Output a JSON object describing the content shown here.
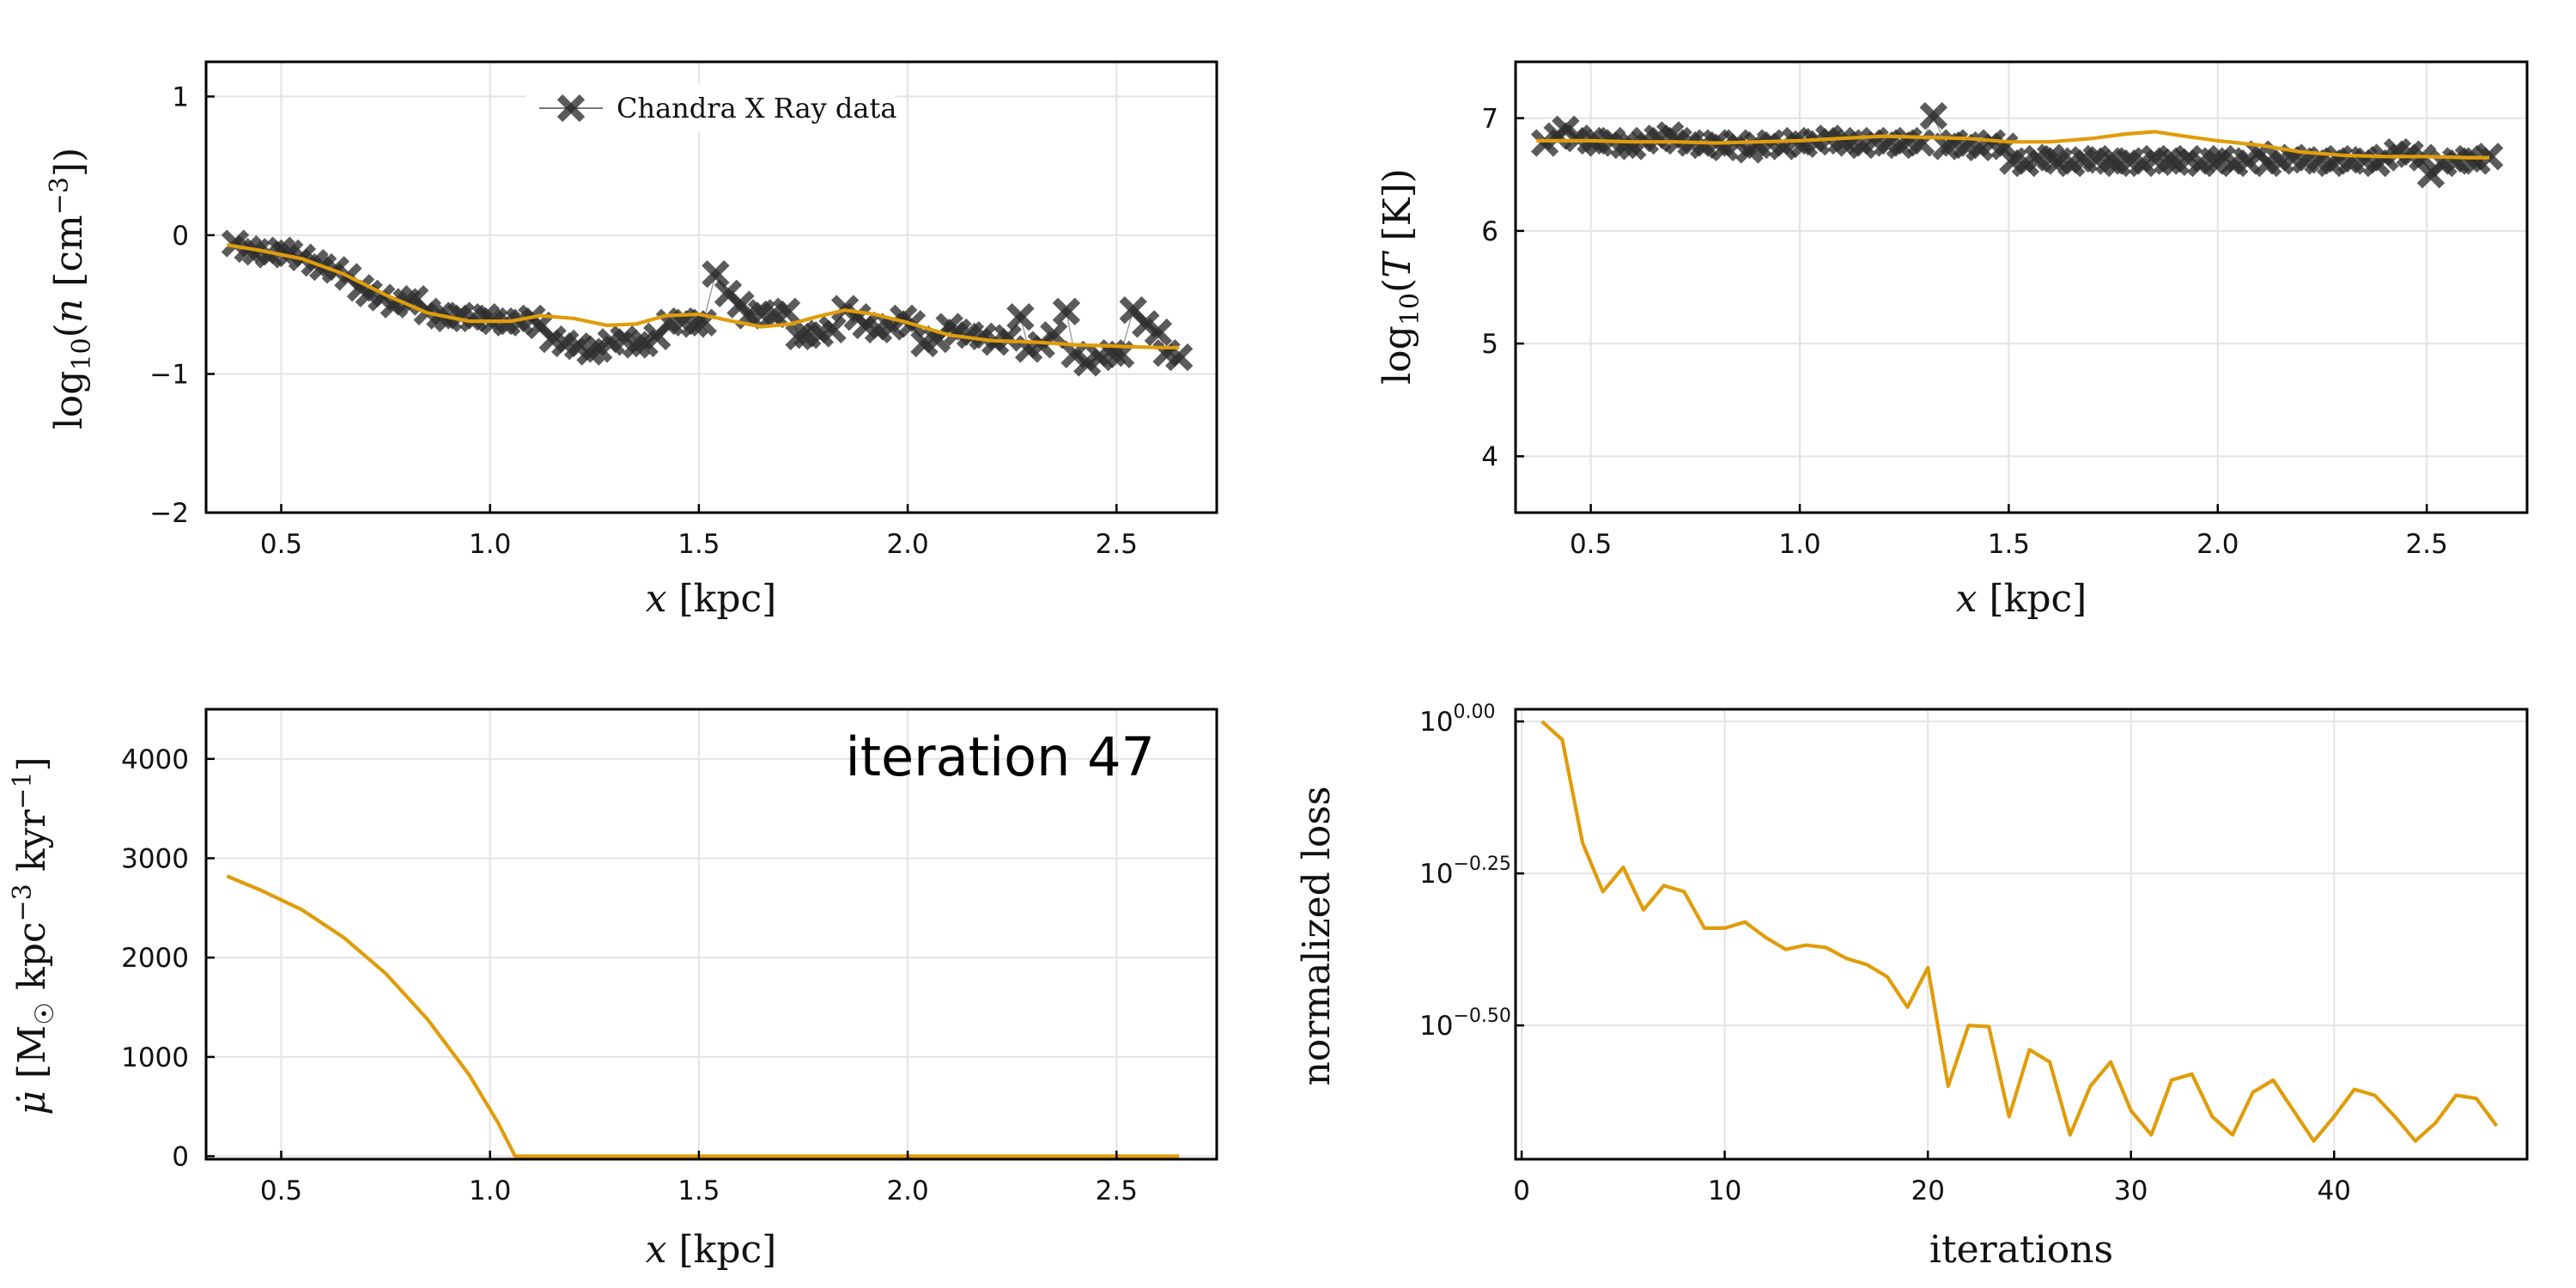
{
  "figure": {
    "annotation": "iteration 47"
  },
  "chart_data": [
    {
      "id": "density",
      "type": "line",
      "xlabel": "x [kpc]",
      "ylabel": "log10(n [cm^-3])",
      "xlim": [
        0.32,
        2.74
      ],
      "ylim": [
        -2,
        1.25
      ],
      "xticks": [
        0.5,
        1.0,
        1.5,
        2.0,
        2.5
      ],
      "xtick_labels": [
        "0.5",
        "1.0",
        "1.5",
        "2.0",
        "2.5"
      ],
      "yticks": [
        1,
        0,
        -1,
        -2
      ],
      "ytick_labels": [
        "1",
        "0",
        "−1",
        "−2"
      ],
      "grid": true,
      "legend": {
        "position": "top",
        "entries": [
          "Chandra X Ray data"
        ]
      },
      "series": [
        {
          "name": "Chandra X Ray data",
          "kind": "markers",
          "x": [
            0.39,
            0.42,
            0.44,
            0.47,
            0.5,
            0.52,
            0.55,
            0.58,
            0.6,
            0.63,
            0.66,
            0.69,
            0.71,
            0.74,
            0.77,
            0.8,
            0.82,
            0.85,
            0.88,
            0.9,
            0.93,
            0.96,
            0.99,
            1.01,
            1.04,
            1.07,
            1.1,
            1.12,
            1.15,
            1.18,
            1.21,
            1.24,
            1.26,
            1.29,
            1.32,
            1.35,
            1.37,
            1.4,
            1.43,
            1.46,
            1.49,
            1.51,
            1.54,
            1.57,
            1.6,
            1.62,
            1.65,
            1.68,
            1.71,
            1.74,
            1.76,
            1.79,
            1.82,
            1.85,
            1.88,
            1.9,
            1.93,
            1.96,
            1.99,
            2.01,
            2.04,
            2.07,
            2.1,
            2.12,
            2.15,
            2.18,
            2.21,
            2.24,
            2.27,
            2.29,
            2.32,
            2.35,
            2.38,
            2.4,
            2.43,
            2.46,
            2.49,
            2.51,
            2.54,
            2.57,
            2.6,
            2.62,
            2.65
          ],
          "y": [
            -0.06,
            -0.1,
            -0.12,
            -0.14,
            -0.11,
            -0.13,
            -0.16,
            -0.2,
            -0.23,
            -0.25,
            -0.3,
            -0.38,
            -0.42,
            -0.45,
            -0.5,
            -0.48,
            -0.46,
            -0.55,
            -0.58,
            -0.6,
            -0.58,
            -0.6,
            -0.59,
            -0.62,
            -0.63,
            -0.62,
            -0.6,
            -0.65,
            -0.75,
            -0.78,
            -0.8,
            -0.84,
            -0.82,
            -0.77,
            -0.75,
            -0.79,
            -0.78,
            -0.73,
            -0.63,
            -0.62,
            -0.64,
            -0.63,
            -0.28,
            -0.42,
            -0.5,
            -0.58,
            -0.56,
            -0.57,
            -0.55,
            -0.73,
            -0.72,
            -0.71,
            -0.68,
            -0.53,
            -0.59,
            -0.65,
            -0.68,
            -0.66,
            -0.6,
            -0.64,
            -0.78,
            -0.75,
            -0.66,
            -0.7,
            -0.72,
            -0.73,
            -0.77,
            -0.74,
            -0.59,
            -0.82,
            -0.79,
            -0.72,
            -0.55,
            -0.86,
            -0.92,
            -0.88,
            -0.85,
            -0.86,
            -0.54,
            -0.64,
            -0.7,
            -0.85,
            -0.88
          ]
        },
        {
          "kind": "line",
          "x": [
            0.37,
            0.45,
            0.55,
            0.65,
            0.75,
            0.85,
            0.95,
            1.05,
            1.12,
            1.2,
            1.28,
            1.35,
            1.42,
            1.5,
            1.58,
            1.65,
            1.72,
            1.78,
            1.85,
            1.92,
            2.0,
            2.1,
            2.2,
            2.3,
            2.4,
            2.5,
            2.6,
            2.65
          ],
          "y": [
            -0.07,
            -0.11,
            -0.17,
            -0.28,
            -0.43,
            -0.56,
            -0.62,
            -0.62,
            -0.58,
            -0.6,
            -0.65,
            -0.64,
            -0.58,
            -0.57,
            -0.62,
            -0.66,
            -0.64,
            -0.59,
            -0.54,
            -0.57,
            -0.63,
            -0.72,
            -0.76,
            -0.77,
            -0.79,
            -0.8,
            -0.81,
            -0.81
          ]
        }
      ]
    },
    {
      "id": "temperature",
      "type": "line",
      "xlabel": "x [kpc]",
      "ylabel": "log10(T [K])",
      "xlim": [
        0.32,
        2.74
      ],
      "ylim": [
        3.5,
        7.5
      ],
      "xticks": [
        0.5,
        1.0,
        1.5,
        2.0,
        2.5
      ],
      "xtick_labels": [
        "0.5",
        "1.0",
        "1.5",
        "2.0",
        "2.5"
      ],
      "yticks": [
        7,
        6,
        5,
        4
      ],
      "ytick_labels": [
        "7",
        "6",
        "5",
        "4"
      ],
      "grid": true,
      "series": [
        {
          "name": "Chandra X Ray data",
          "kind": "markers",
          "x": [
            0.39,
            0.42,
            0.44,
            0.47,
            0.5,
            0.52,
            0.55,
            0.58,
            0.6,
            0.63,
            0.66,
            0.69,
            0.71,
            0.74,
            0.77,
            0.8,
            0.82,
            0.85,
            0.88,
            0.9,
            0.93,
            0.96,
            0.99,
            1.01,
            1.04,
            1.07,
            1.1,
            1.12,
            1.15,
            1.18,
            1.21,
            1.24,
            1.26,
            1.29,
            1.32,
            1.35,
            1.37,
            1.4,
            1.43,
            1.46,
            1.49,
            1.51,
            1.54,
            1.57,
            1.6,
            1.62,
            1.65,
            1.68,
            1.71,
            1.74,
            1.76,
            1.79,
            1.82,
            1.85,
            1.88,
            1.9,
            1.93,
            1.96,
            1.99,
            2.01,
            2.04,
            2.07,
            2.1,
            2.12,
            2.15,
            2.18,
            2.21,
            2.24,
            2.27,
            2.29,
            2.32,
            2.35,
            2.38,
            2.4,
            2.43,
            2.46,
            2.49,
            2.51,
            2.54,
            2.57,
            2.6,
            2.62,
            2.65
          ],
          "y": [
            6.78,
            6.84,
            6.9,
            6.82,
            6.8,
            6.78,
            6.8,
            6.76,
            6.75,
            6.8,
            6.82,
            6.85,
            6.8,
            6.78,
            6.76,
            6.78,
            6.74,
            6.78,
            6.72,
            6.76,
            6.78,
            6.75,
            6.8,
            6.77,
            6.79,
            6.82,
            6.8,
            6.78,
            6.76,
            6.8,
            6.78,
            6.76,
            6.8,
            6.78,
            7.02,
            6.75,
            6.78,
            6.76,
            6.74,
            6.78,
            6.75,
            6.62,
            6.6,
            6.64,
            6.65,
            6.62,
            6.6,
            6.63,
            6.64,
            6.62,
            6.6,
            6.62,
            6.6,
            6.64,
            6.62,
            6.61,
            6.64,
            6.6,
            6.62,
            6.64,
            6.6,
            6.62,
            6.68,
            6.6,
            6.62,
            6.65,
            6.63,
            6.62,
            6.6,
            6.64,
            6.62,
            6.63,
            6.6,
            6.65,
            6.7,
            6.68,
            6.65,
            6.5,
            6.6,
            6.62,
            6.64,
            6.62,
            6.66
          ]
        },
        {
          "kind": "line",
          "x": [
            0.37,
            0.5,
            0.6,
            0.7,
            0.8,
            0.9,
            1.0,
            1.1,
            1.2,
            1.3,
            1.4,
            1.5,
            1.6,
            1.7,
            1.78,
            1.85,
            1.92,
            2.0,
            2.1,
            2.2,
            2.3,
            2.4,
            2.5,
            2.6,
            2.65
          ],
          "y": [
            6.8,
            6.8,
            6.79,
            6.79,
            6.78,
            6.79,
            6.8,
            6.82,
            6.84,
            6.83,
            6.82,
            6.79,
            6.79,
            6.82,
            6.86,
            6.88,
            6.84,
            6.8,
            6.76,
            6.7,
            6.67,
            6.66,
            6.66,
            6.65,
            6.65
          ]
        }
      ]
    },
    {
      "id": "mass-dropout",
      "type": "line",
      "xlabel": "x [kpc]",
      "ylabel": "μ̇ [M☉ kpc^-3 kyr^-1]",
      "xlim": [
        0.32,
        2.74
      ],
      "ylim": [
        -30,
        4500
      ],
      "xticks": [
        0.5,
        1.0,
        1.5,
        2.0,
        2.5
      ],
      "xtick_labels": [
        "0.5",
        "1.0",
        "1.5",
        "2.0",
        "2.5"
      ],
      "yticks": [
        4000,
        3000,
        2000,
        1000,
        0
      ],
      "ytick_labels": [
        "4000",
        "3000",
        "2000",
        "1000",
        "0"
      ],
      "grid": true,
      "series": [
        {
          "kind": "line",
          "x": [
            0.37,
            0.45,
            0.55,
            0.65,
            0.75,
            0.85,
            0.95,
            1.02,
            1.06,
            1.1,
            1.5,
            2.0,
            2.5,
            2.65
          ],
          "y": [
            2820,
            2680,
            2480,
            2200,
            1840,
            1380,
            820,
            330,
            0,
            0,
            0,
            0,
            0,
            0
          ]
        }
      ]
    },
    {
      "id": "loss",
      "type": "line",
      "xlabel": "iterations",
      "ylabel": "normalized loss",
      "yscale": "log10",
      "xlim": [
        -0.3,
        49.5
      ],
      "ylim": [
        -0.72,
        0.02
      ],
      "xticks": [
        0,
        10,
        20,
        30,
        40
      ],
      "xtick_labels": [
        "0",
        "10",
        "20",
        "30",
        "40"
      ],
      "yticks": [
        0.0,
        -0.25,
        -0.5
      ],
      "ytick_labels": [
        {
          "base": "10",
          "exp": "0.00"
        },
        {
          "base": "10",
          "exp": "−0.25"
        },
        {
          "base": "10",
          "exp": "−0.50"
        }
      ],
      "grid": true,
      "series": [
        {
          "kind": "line",
          "x": [
            1,
            2,
            3,
            4,
            5,
            6,
            7,
            8,
            9,
            10,
            11,
            12,
            13,
            14,
            15,
            16,
            17,
            18,
            19,
            20,
            21,
            22,
            23,
            24,
            25,
            26,
            27,
            28,
            29,
            30,
            31,
            32,
            33,
            34,
            35,
            36,
            37,
            38,
            39,
            40,
            41,
            42,
            43,
            44,
            45,
            46,
            47,
            48
          ],
          "y": [
            0.0,
            -0.03,
            -0.2,
            -0.28,
            -0.24,
            -0.31,
            -0.27,
            -0.28,
            -0.34,
            -0.34,
            -0.33,
            -0.355,
            -0.375,
            -0.368,
            -0.372,
            -0.39,
            -0.4,
            -0.42,
            -0.47,
            -0.405,
            -0.6,
            -0.5,
            -0.502,
            -0.65,
            -0.54,
            -0.56,
            -0.68,
            -0.6,
            -0.56,
            -0.64,
            -0.68,
            -0.59,
            -0.58,
            -0.65,
            -0.68,
            -0.61,
            -0.59,
            -0.64,
            -0.69,
            -0.65,
            -0.605,
            -0.615,
            -0.65,
            -0.69,
            -0.66,
            -0.615,
            -0.62,
            -0.665
          ]
        }
      ]
    }
  ]
}
